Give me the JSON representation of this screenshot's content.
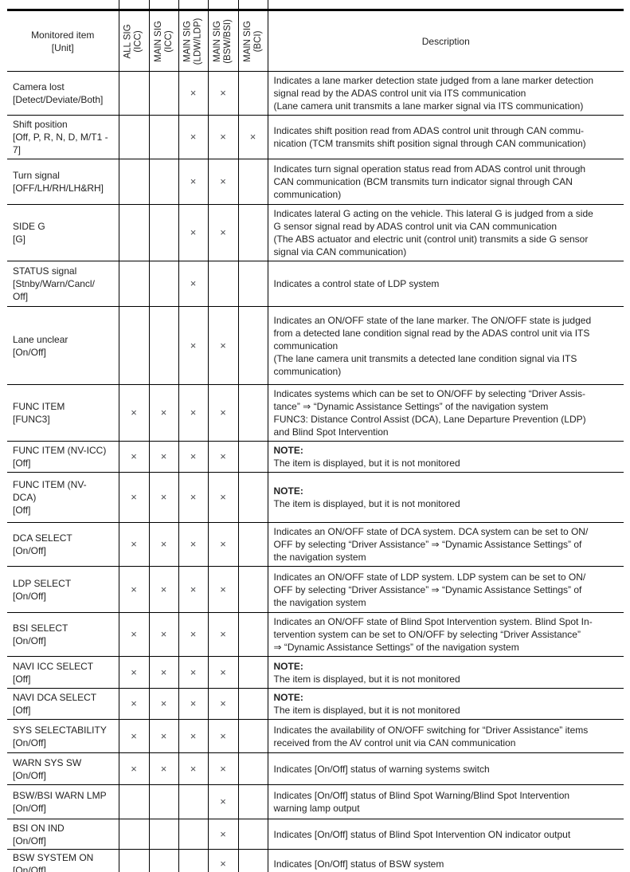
{
  "colors": {
    "border": "#000000",
    "text": "#222222",
    "mark": "#4b4c50"
  },
  "table": {
    "mark_symbol": "×",
    "header": {
      "monitored_item": "Monitored item\n[Unit]",
      "signal_columns": [
        {
          "line1": "ALL SIG",
          "line2": "(ICC)"
        },
        {
          "line1": "MAIN SIG",
          "line2": "(ICC)"
        },
        {
          "line1": "MAIN SIG",
          "line2": "(LDW/LDP)"
        },
        {
          "line1": "MAIN SIG",
          "line2": "(BSW/BSI)"
        },
        {
          "line1": "MAIN SIG",
          "line2": "(BCI)"
        }
      ],
      "description": "Description"
    },
    "rows": [
      {
        "item": "Camera lost\n[Detect/Deviate/Both]",
        "marks": [
          0,
          0,
          1,
          1,
          0
        ],
        "desc": "Indicates a lane marker detection state judged from a lane marker detection\nsignal read by the ADAS control unit via ITS communication\n(Lane camera unit transmits a lane marker signal via ITS communication)"
      },
      {
        "item": "Shift position\n[Off, P, R, N, D, M/T1 -\n7]",
        "marks": [
          0,
          0,
          1,
          1,
          1
        ],
        "desc": "Indicates shift position read from ADAS control unit through CAN commu-\nnication (TCM transmits shift position signal through CAN communication)"
      },
      {
        "item": "Turn signal\n[OFF/LH/RH/LH&RH]",
        "marks": [
          0,
          0,
          1,
          1,
          0
        ],
        "desc": "Indicates turn signal operation status read from ADAS control unit through\nCAN communication (BCM transmits turn indicator signal through CAN\ncommunication)"
      },
      {
        "item": "SIDE G\n[G]",
        "marks": [
          0,
          0,
          1,
          1,
          0
        ],
        "desc": "Indicates lateral G acting on the vehicle. This lateral G is judged from a side\nG sensor signal read by ADAS control unit via CAN communication\n(The ABS actuator and electric unit (control unit) transmits a side G sensor\nsignal via CAN communication)"
      },
      {
        "item": "STATUS signal\n[Stnby/Warn/Cancl/\nOff]",
        "marks": [
          0,
          0,
          1,
          0,
          0
        ],
        "desc": "Indicates a control state of LDP system"
      },
      {
        "item": "Lane unclear\n[On/Off]",
        "marks": [
          0,
          0,
          1,
          1,
          0
        ],
        "desc": "Indicates an ON/OFF state of the lane marker. The ON/OFF state is judged\nfrom a detected lane condition signal read by the ADAS control unit via ITS\ncommunication\n(The lane camera unit transmits a detected lane condition signal via ITS\ncommunication)"
      },
      {
        "item": "FUNC ITEM\n[FUNC3]",
        "marks": [
          1,
          1,
          1,
          1,
          0
        ],
        "desc": "Indicates systems which can be set to ON/OFF by selecting “Driver Assis-\ntance” ⇒ “Dynamic Assistance Settings” of the navigation system\nFUNC3: Distance Control Assist (DCA), Lane Departure Prevention (LDP)\nand Blind Spot Intervention"
      },
      {
        "item": "FUNC ITEM (NV-ICC)\n[Off]",
        "marks": [
          1,
          1,
          1,
          1,
          0
        ],
        "note_label": "NOTE:",
        "desc": "The item is displayed, but it is not monitored"
      },
      {
        "item": "FUNC ITEM (NV-\nDCA)\n[Off]",
        "marks": [
          1,
          1,
          1,
          1,
          0
        ],
        "note_label": "NOTE:",
        "desc": "The item is displayed, but it is not monitored"
      },
      {
        "item": "DCA SELECT\n[On/Off]",
        "marks": [
          1,
          1,
          1,
          1,
          0
        ],
        "desc": "Indicates an ON/OFF state of DCA system. DCA system can be set to ON/\nOFF by selecting “Driver Assistance” ⇒ “Dynamic Assistance Settings” of\nthe navigation system"
      },
      {
        "item": "LDP SELECT\n[On/Off]",
        "marks": [
          1,
          1,
          1,
          1,
          0
        ],
        "desc": "Indicates an ON/OFF state of LDP system. LDP system can be set to ON/\nOFF by selecting “Driver Assistance” ⇒ “Dynamic Assistance Settings” of\nthe navigation system"
      },
      {
        "item": "BSI SELECT\n[On/Off]",
        "marks": [
          1,
          1,
          1,
          1,
          0
        ],
        "desc": "Indicates an ON/OFF state of Blind Spot Intervention system. Blind Spot In-\ntervention system can be set to ON/OFF by selecting “Driver Assistance”\n⇒ “Dynamic Assistance Settings” of the navigation system"
      },
      {
        "item": "NAVI ICC SELECT\n[Off]",
        "marks": [
          1,
          1,
          1,
          1,
          0
        ],
        "note_label": "NOTE:",
        "desc": "The item is displayed, but it is not monitored"
      },
      {
        "item": "NAVI DCA SELECT\n[Off]",
        "marks": [
          1,
          1,
          1,
          1,
          0
        ],
        "note_label": "NOTE:",
        "desc": "The item is displayed, but it is not monitored"
      },
      {
        "item": "SYS SELECTABILITY\n[On/Off]",
        "marks": [
          1,
          1,
          1,
          1,
          0
        ],
        "desc": "Indicates the availability of ON/OFF switching for “Driver Assistance” items\nreceived from the AV control unit via CAN communication"
      },
      {
        "item": "WARN SYS SW\n[On/Off]",
        "marks": [
          1,
          1,
          1,
          1,
          0
        ],
        "desc": "Indicates [On/Off] status of warning systems switch"
      },
      {
        "item": "BSW/BSI WARN LMP\n[On/Off]",
        "marks": [
          0,
          0,
          0,
          1,
          0
        ],
        "desc": "Indicates [On/Off] status of Blind Spot Warning/Blind Spot Intervention\nwarning lamp output"
      },
      {
        "item": "BSI ON IND\n[On/Off]",
        "marks": [
          0,
          0,
          0,
          1,
          0
        ],
        "desc": "Indicates [On/Off] status of Blind Spot Intervention ON indicator output"
      },
      {
        "item": "BSW SYSTEM ON\n[On/Off]",
        "marks": [
          0,
          0,
          0,
          1,
          0
        ],
        "desc": "Indicates [On/Off] status of BSW system"
      }
    ]
  }
}
